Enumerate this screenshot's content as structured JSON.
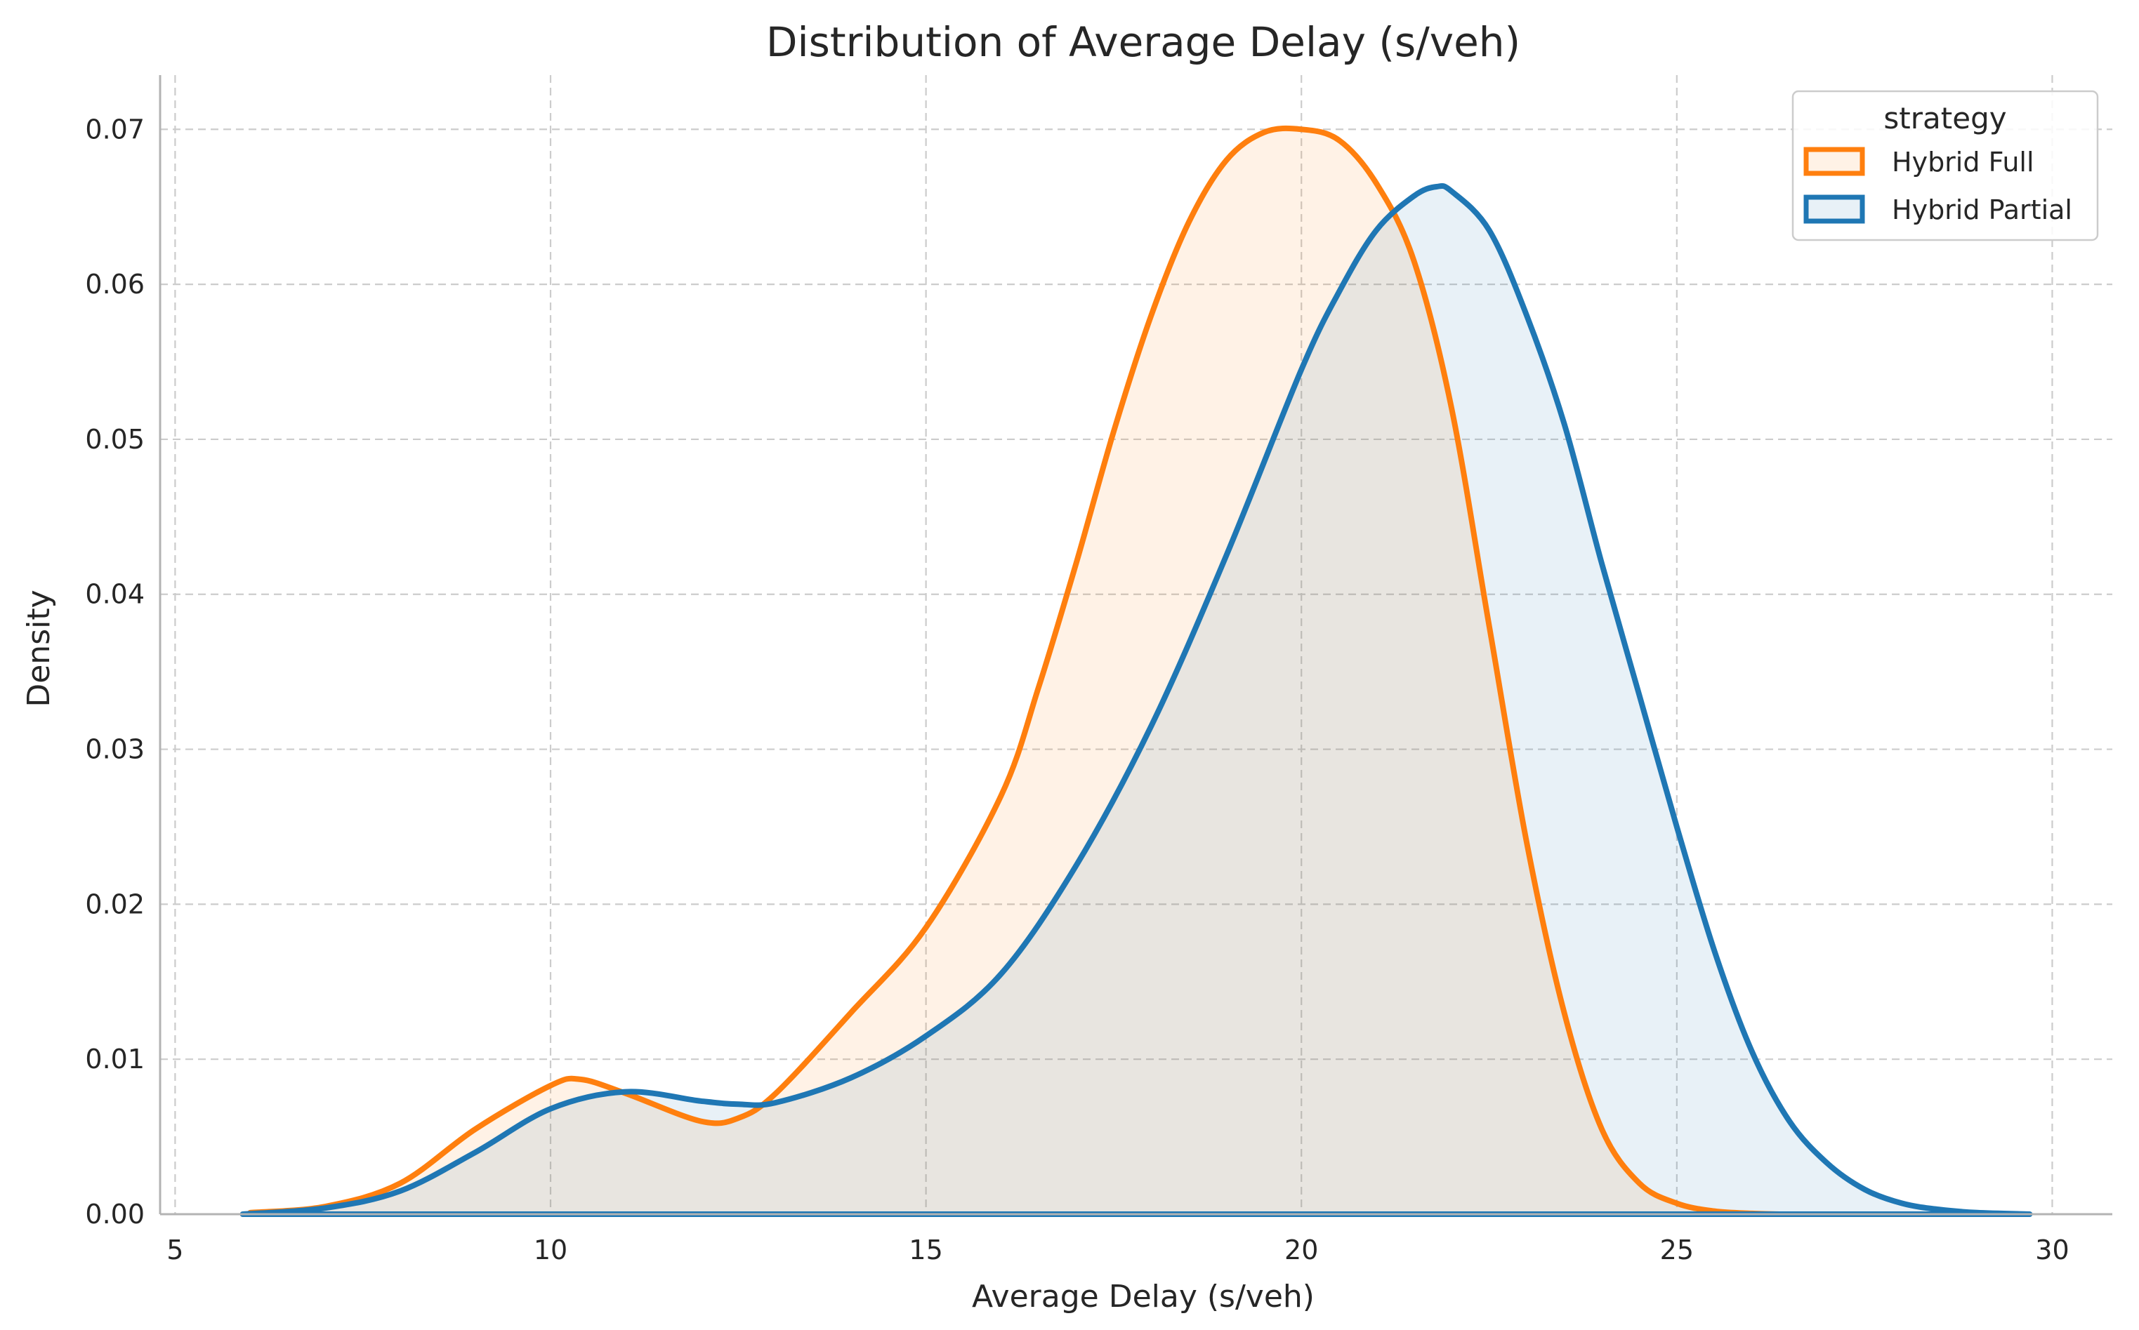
{
  "chart_data": {
    "type": "area",
    "title": "Distribution of Average Delay (s/veh)",
    "xlabel": "Average Delay (s/veh)",
    "ylabel": "Density",
    "xlim": [
      4.8,
      30.8
    ],
    "ylim": [
      0,
      0.0735
    ],
    "xticks": [
      5,
      10,
      15,
      20,
      25,
      30
    ],
    "yticks": [
      0.0,
      0.01,
      0.02,
      0.03,
      0.04,
      0.05,
      0.06,
      0.07
    ],
    "ytick_labels": [
      "0.00",
      "0.01",
      "0.02",
      "0.03",
      "0.04",
      "0.05",
      "0.06",
      "0.07"
    ],
    "grid": true,
    "legend": {
      "title": "strategy",
      "placement": "top-right"
    },
    "series": [
      {
        "name": "Hybrid Full",
        "color": "#ff7f0e",
        "fill_opacity": 0.1,
        "x": [
          6.0,
          7.0,
          8.0,
          9.0,
          10.0,
          10.4,
          11.0,
          12.0,
          12.5,
          13.0,
          14.0,
          15.0,
          16.0,
          16.5,
          17.0,
          17.5,
          18.0,
          18.5,
          19.0,
          19.5,
          20.0,
          20.5,
          21.0,
          21.5,
          22.0,
          22.5,
          23.0,
          23.5,
          24.0,
          24.5,
          25.0,
          25.5,
          26.0,
          26.4
        ],
        "y": [
          0.0001,
          0.0005,
          0.002,
          0.0055,
          0.0083,
          0.0087,
          0.0078,
          0.006,
          0.0062,
          0.0078,
          0.013,
          0.0185,
          0.027,
          0.034,
          0.042,
          0.0505,
          0.058,
          0.064,
          0.068,
          0.0698,
          0.07,
          0.0693,
          0.0665,
          0.0615,
          0.052,
          0.038,
          0.024,
          0.013,
          0.0055,
          0.002,
          0.0007,
          0.0002,
          5e-05,
          0.0
        ]
      },
      {
        "name": "Hybrid Partial",
        "color": "#1f77b4",
        "fill_opacity": 0.1,
        "x": [
          5.9,
          7.0,
          8.0,
          9.0,
          10.0,
          11.0,
          12.0,
          12.5,
          13.0,
          14.0,
          15.0,
          16.0,
          17.0,
          18.0,
          19.0,
          20.0,
          20.5,
          21.0,
          21.5,
          21.8,
          22.0,
          22.5,
          23.0,
          23.5,
          24.0,
          24.5,
          25.0,
          25.5,
          26.0,
          26.5,
          27.0,
          27.5,
          28.0,
          28.5,
          29.0,
          29.7
        ],
        "y": [
          0.0,
          0.0004,
          0.0015,
          0.004,
          0.0068,
          0.0079,
          0.0073,
          0.0071,
          0.0072,
          0.0088,
          0.0115,
          0.0155,
          0.0225,
          0.0315,
          0.0425,
          0.0545,
          0.0595,
          0.0635,
          0.0657,
          0.0663,
          0.066,
          0.0635,
          0.058,
          0.051,
          0.042,
          0.0335,
          0.025,
          0.017,
          0.0105,
          0.006,
          0.0033,
          0.0016,
          0.0007,
          0.0003,
          0.0001,
          0.0
        ]
      }
    ]
  }
}
